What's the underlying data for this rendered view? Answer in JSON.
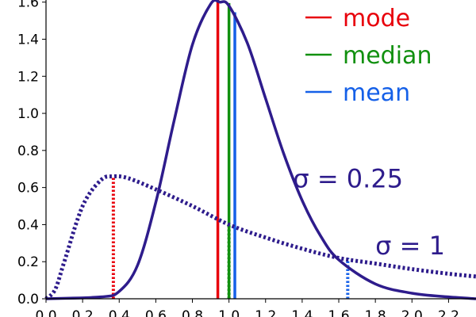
{
  "chart_data": {
    "type": "line",
    "title": "",
    "xlabel": "",
    "ylabel": "",
    "xlim": [
      0.0,
      2.35
    ],
    "ylim": [
      0.0,
      1.62
    ],
    "grid": false,
    "legend_placement": "top-right",
    "x_ticks": [
      "0.0",
      "0.2",
      "0.4",
      "0.6",
      "0.8",
      "1.0",
      "1.2",
      "1.4",
      "1.6",
      "1.8",
      "2.0",
      "2.2"
    ],
    "x_tick_values": [
      0.0,
      0.2,
      0.4,
      0.6,
      0.8,
      1.0,
      1.2,
      1.4,
      1.6,
      1.8,
      2.0,
      2.2
    ],
    "y_ticks": [
      "0.0",
      "0.2",
      "0.4",
      "0.6",
      "0.8",
      "1.0",
      "1.2",
      "1.4",
      "1.6"
    ],
    "y_tick_values": [
      0.0,
      0.2,
      0.4,
      0.6,
      0.8,
      1.0,
      1.2,
      1.4,
      1.6
    ],
    "series": [
      {
        "style": "solid",
        "color": "#2e1c8c",
        "sigma": 0.25,
        "x": [
          0.0,
          0.3,
          0.4,
          0.5,
          0.6,
          0.7,
          0.8,
          0.9,
          0.95,
          1.0,
          1.1,
          1.2,
          1.3,
          1.4,
          1.5,
          1.6,
          1.8,
          2.0,
          2.2,
          2.35
        ],
        "y": [
          0.0,
          0.01,
          0.04,
          0.18,
          0.52,
          0.96,
          1.37,
          1.59,
          1.6,
          1.58,
          1.38,
          1.08,
          0.78,
          0.53,
          0.34,
          0.21,
          0.08,
          0.03,
          0.01,
          0.0
        ]
      },
      {
        "style": "dotted",
        "color": "#2e1c8c",
        "sigma": 1,
        "x": [
          0.0,
          0.05,
          0.1,
          0.2,
          0.3,
          0.368,
          0.45,
          0.6,
          0.8,
          1.0,
          1.2,
          1.4,
          1.6,
          1.8,
          2.0,
          2.2,
          2.35
        ],
        "y": [
          0.0,
          0.05,
          0.2,
          0.5,
          0.64,
          0.66,
          0.65,
          0.59,
          0.5,
          0.4,
          0.33,
          0.27,
          0.22,
          0.19,
          0.16,
          0.135,
          0.12
        ]
      }
    ],
    "markers": [
      {
        "style": "solid",
        "color": "#e8000b",
        "x": 0.939,
        "ymax": 1.62
      },
      {
        "style": "solid",
        "color": "#11900f",
        "x": 1.0,
        "ymax": 1.595
      },
      {
        "style": "solid",
        "color": "#1560e8",
        "x": 1.032,
        "ymax": 1.545
      },
      {
        "style": "dotted",
        "color": "#e8000b",
        "x": 0.368,
        "ymax": 0.66
      },
      {
        "style": "dotted",
        "color": "#11900f",
        "x": 1.0,
        "ymax": 0.4
      },
      {
        "style": "dotted",
        "color": "#1560e8",
        "x": 1.649,
        "ymax": 0.22
      }
    ],
    "legend": [
      {
        "label": "mode",
        "color": "#e8000b"
      },
      {
        "label": "median",
        "color": "#11900f"
      },
      {
        "label": "mean",
        "color": "#1560e8"
      }
    ],
    "annotations": [
      {
        "text": "σ = 0.25",
        "x": 1.35,
        "y": 0.6
      },
      {
        "text": "σ = 1",
        "x": 1.8,
        "y": 0.24
      }
    ]
  }
}
